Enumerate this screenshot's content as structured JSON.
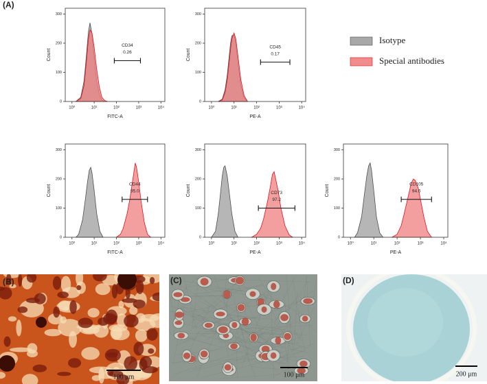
{
  "figure": {
    "panel_labels": [
      "(A)",
      "(B)",
      "(C)",
      "(D)"
    ],
    "scale_bars": [
      "100 μm",
      "100 μm",
      "200 μm"
    ]
  },
  "chart_data": [
    {
      "type": "area",
      "xlabel": "FITC-A",
      "ylabel": "Count",
      "log_x": true,
      "xlim": [
        0.5,
        15000
      ],
      "ylim": [
        0,
        320
      ],
      "xticks": [
        {
          "value": 1,
          "label": "10⁰"
        },
        {
          "value": 10,
          "label": "10¹"
        },
        {
          "value": 100,
          "label": "10²"
        },
        {
          "value": 1000,
          "label": "10³"
        },
        {
          "value": 10000,
          "label": "10⁴"
        }
      ],
      "yticks": [
        0,
        100,
        200,
        300
      ],
      "series": [
        {
          "name": "Isotype",
          "color": "#9e9e9e",
          "edge": "#4d4d4d",
          "x": [
            1.5,
            2.5,
            3.5,
            4.5,
            5.5,
            6.5,
            8,
            10,
            13,
            17,
            22,
            30
          ],
          "values": [
            0,
            15,
            70,
            160,
            240,
            270,
            230,
            150,
            70,
            25,
            5,
            0
          ]
        },
        {
          "name": "Special antibodies",
          "color": "#f07f7f",
          "edge": "#e3121c",
          "x": [
            1.5,
            2.5,
            3.5,
            4.5,
            5.5,
            6.5,
            8,
            10,
            13,
            17,
            22,
            30,
            40
          ],
          "values": [
            0,
            10,
            55,
            140,
            215,
            245,
            235,
            185,
            110,
            50,
            15,
            3,
            0
          ]
        }
      ],
      "gate": {
        "name": "CD34",
        "value": 0.26,
        "x": [
          80,
          1200
        ],
        "y": 140
      }
    },
    {
      "type": "area",
      "xlabel": "PE-A",
      "ylabel": "Count",
      "log_x": true,
      "xlim": [
        0.5,
        15000
      ],
      "ylim": [
        0,
        320
      ],
      "xticks": [
        {
          "value": 1,
          "label": "10⁰"
        },
        {
          "value": 10,
          "label": "10¹"
        },
        {
          "value": 100,
          "label": "10²"
        },
        {
          "value": 1000,
          "label": "10³"
        },
        {
          "value": 10000,
          "label": "10⁴"
        }
      ],
      "yticks": [
        0,
        100,
        200,
        300
      ],
      "series": [
        {
          "color": "#9e9e9e",
          "edge": "#4d4d4d",
          "x": [
            2,
            3,
            4,
            5,
            6,
            7,
            8,
            10,
            12,
            15,
            20,
            28,
            40
          ],
          "values": [
            0,
            8,
            40,
            90,
            150,
            200,
            225,
            230,
            200,
            130,
            55,
            12,
            0
          ]
        },
        {
          "color": "#f07f7f",
          "edge": "#e3121c",
          "x": [
            2,
            3,
            4,
            5,
            6,
            7,
            8,
            10,
            12,
            15,
            20,
            28,
            40
          ],
          "values": [
            0,
            5,
            30,
            75,
            130,
            180,
            215,
            235,
            215,
            155,
            75,
            20,
            0
          ]
        }
      ],
      "gate": {
        "name": "CD45",
        "value": 0.17,
        "x": [
          150,
          3000
        ],
        "y": 135
      }
    },
    {
      "type": "area",
      "xlabel": "FITC-A",
      "ylabel": "Count",
      "log_x": true,
      "xlim": [
        0.5,
        15000
      ],
      "ylim": [
        0,
        320
      ],
      "xticks": [
        {
          "value": 1,
          "label": "10⁰"
        },
        {
          "value": 10,
          "label": "10¹"
        },
        {
          "value": 100,
          "label": "10²"
        },
        {
          "value": 1000,
          "label": "10³"
        },
        {
          "value": 10000,
          "label": "10⁴"
        }
      ],
      "yticks": [
        0,
        100,
        200,
        300
      ],
      "series": [
        {
          "color": "#9e9e9e",
          "edge": "#4d4d4d",
          "x": [
            1.5,
            2,
            3,
            4,
            5,
            6,
            7,
            8,
            10,
            13,
            18,
            25
          ],
          "values": [
            0,
            10,
            60,
            130,
            190,
            230,
            240,
            220,
            160,
            80,
            20,
            0
          ]
        },
        {
          "color": "#f07f7f",
          "edge": "#e3121c",
          "x": [
            100,
            150,
            200,
            300,
            400,
            500,
            600,
            700,
            800,
            1000,
            1300,
            1800,
            2500,
            3500
          ],
          "values": [
            0,
            10,
            30,
            80,
            130,
            180,
            220,
            255,
            240,
            190,
            120,
            50,
            10,
            0
          ]
        }
      ],
      "gate": {
        "name": "CD44",
        "value": 95,
        "value_label": "95.0",
        "x": [
          180,
          2500
        ],
        "y": 130
      }
    },
    {
      "type": "area",
      "xlabel": "PE-A",
      "ylabel": "Count",
      "log_x": true,
      "xlim": [
        0.5,
        15000
      ],
      "ylim": [
        0,
        320
      ],
      "xticks": [
        {
          "value": 1,
          "label": "10⁰"
        },
        {
          "value": 10,
          "label": "10¹"
        },
        {
          "value": 100,
          "label": "10²"
        },
        {
          "value": 1000,
          "label": "10³"
        },
        {
          "value": 10000,
          "label": "10⁴"
        }
      ],
      "yticks": [
        0,
        100,
        200,
        300
      ],
      "series": [
        {
          "color": "#9e9e9e",
          "edge": "#4d4d4d",
          "x": [
            1,
            1.5,
            2,
            2.5,
            3,
            3.5,
            4,
            5,
            6,
            8,
            11,
            15
          ],
          "values": [
            0,
            20,
            80,
            150,
            210,
            240,
            245,
            210,
            160,
            80,
            20,
            0
          ]
        },
        {
          "color": "#f07f7f",
          "edge": "#e3121c",
          "x": [
            60,
            100,
            150,
            200,
            300,
            400,
            500,
            600,
            700,
            900,
            1200,
            1800,
            2800,
            4000
          ],
          "values": [
            0,
            10,
            30,
            60,
            120,
            170,
            215,
            225,
            200,
            160,
            100,
            40,
            8,
            0
          ]
        }
      ],
      "gate": {
        "name": "CD73",
        "value": 97.2,
        "x": [
          120,
          5000
        ],
        "y": 100
      }
    },
    {
      "type": "area",
      "xlabel": "PE-A",
      "ylabel": "Count",
      "log_x": true,
      "xlim": [
        0.5,
        15000
      ],
      "ylim": [
        0,
        320
      ],
      "xticks": [
        {
          "value": 1,
          "label": "10⁰"
        },
        {
          "value": 10,
          "label": "10¹"
        },
        {
          "value": 100,
          "label": "10²"
        },
        {
          "value": 1000,
          "label": "10³"
        },
        {
          "value": 10000,
          "label": "10⁴"
        }
      ],
      "yticks": [
        0,
        100,
        200,
        300
      ],
      "series": [
        {
          "color": "#9e9e9e",
          "edge": "#4d4d4d",
          "x": [
            1.5,
            2,
            3,
            4,
            5,
            6,
            7,
            8,
            10,
            13,
            18,
            25
          ],
          "values": [
            0,
            15,
            70,
            150,
            210,
            245,
            255,
            230,
            160,
            70,
            15,
            0
          ]
        },
        {
          "color": "#f07f7f",
          "edge": "#e3121c",
          "x": [
            60,
            100,
            150,
            200,
            300,
            400,
            500,
            600,
            800,
            1000,
            1400,
            2000,
            3000
          ],
          "values": [
            0,
            10,
            40,
            80,
            140,
            185,
            200,
            195,
            170,
            130,
            70,
            20,
            0
          ]
        }
      ],
      "gate": {
        "name": "CD105",
        "value": 94.6,
        "x": [
          150,
          3000
        ],
        "y": 130
      }
    }
  ]
}
